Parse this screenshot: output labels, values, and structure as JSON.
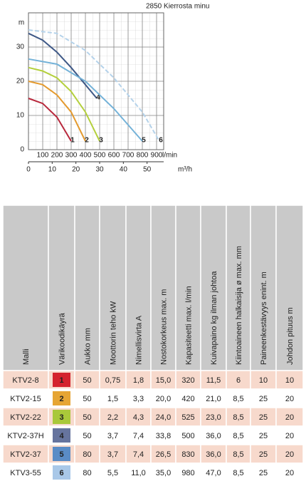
{
  "chart_data": {
    "type": "line",
    "title": "2850 Kierrosta minu",
    "ylabel": "m",
    "xlabel": "l/min",
    "x2label": "m³/h",
    "xlim": [
      0,
      950
    ],
    "xticks": [
      100,
      200,
      300,
      400,
      500,
      600,
      700,
      800,
      900
    ],
    "x2lim": [
      0,
      57
    ],
    "x2ticks": [
      0,
      10,
      20,
      30,
      40,
      50
    ],
    "ylim": [
      0,
      40
    ],
    "yticks": [
      0,
      10,
      20,
      30
    ],
    "grid": true,
    "series": [
      {
        "name": "1",
        "color": "#b8283c",
        "dashed": false,
        "x": [
          0,
          100,
          200,
          300
        ],
        "values": [
          15,
          13.5,
          9.5,
          2.5
        ]
      },
      {
        "name": "2",
        "color": "#e49a2e",
        "dashed": false,
        "x": [
          0,
          100,
          200,
          300,
          400
        ],
        "values": [
          20,
          19,
          16,
          11,
          2.5
        ]
      },
      {
        "name": "3",
        "color": "#b4d03c",
        "dashed": false,
        "x": [
          0,
          100,
          200,
          300,
          400,
          500
        ],
        "values": [
          24,
          23,
          21,
          17,
          11,
          2.5
        ]
      },
      {
        "name": "4",
        "color": "#3e5886",
        "dashed": false,
        "x": [
          0,
          100,
          200,
          300,
          400,
          480
        ],
        "values": [
          34,
          32,
          28.5,
          24,
          19,
          15
        ]
      },
      {
        "name": "5",
        "color": "#74b2d8",
        "dashed": false,
        "x": [
          0,
          200,
          400,
          600,
          800
        ],
        "values": [
          26.5,
          25,
          20,
          12,
          2.5
        ]
      },
      {
        "name": "6",
        "color": "#b4d2ea",
        "dashed": true,
        "x": [
          0,
          200,
          400,
          600,
          800,
          920
        ],
        "values": [
          35,
          34,
          29,
          21,
          11,
          2.5
        ]
      }
    ]
  },
  "table": {
    "header": [
      "Malli",
      "Värikoodikäyrä",
      "Aukko mm",
      "Moottorin teho kW",
      "Nimellisvirta A",
      "Nostokorkeus max. m",
      "Kapasiteetti max. l/min",
      "Kuivapaino kg ilman johtoa",
      "Kiintoaineen halkaisija ø max. mm",
      "Paineenkestävyys enint. m",
      "Johdon pituus m"
    ],
    "code_colors": [
      "#d4232e",
      "#e6a534",
      "#a9c83a",
      "#66749e",
      "#5a8cc6",
      "#a9c8e8"
    ],
    "rows": [
      [
        "KTV2-8",
        "1",
        "50",
        "0,75",
        "1,8",
        "15,0",
        "320",
        "11,5",
        "6",
        "10",
        "10"
      ],
      [
        "KTV2-15",
        "2",
        "50",
        "1,5",
        "3,3",
        "20,0",
        "420",
        "21,0",
        "8,5",
        "25",
        "20"
      ],
      [
        "KTV2-22",
        "3",
        "50",
        "2,2",
        "4,3",
        "24,0",
        "525",
        "23,0",
        "8,5",
        "25",
        "20"
      ],
      [
        "KTV2-37H",
        "4",
        "50",
        "3,7",
        "7,4",
        "33,8",
        "500",
        "36,0",
        "8,5",
        "25",
        "20"
      ],
      [
        "KTV2-37",
        "5",
        "80",
        "3,7",
        "7,4",
        "26,5",
        "830",
        "36,0",
        "8,5",
        "25",
        "20"
      ],
      [
        "KTV3-55",
        "6",
        "80",
        "5,5",
        "11,0",
        "35,0",
        "980",
        "47,0",
        "8,5",
        "25",
        "20"
      ]
    ]
  }
}
